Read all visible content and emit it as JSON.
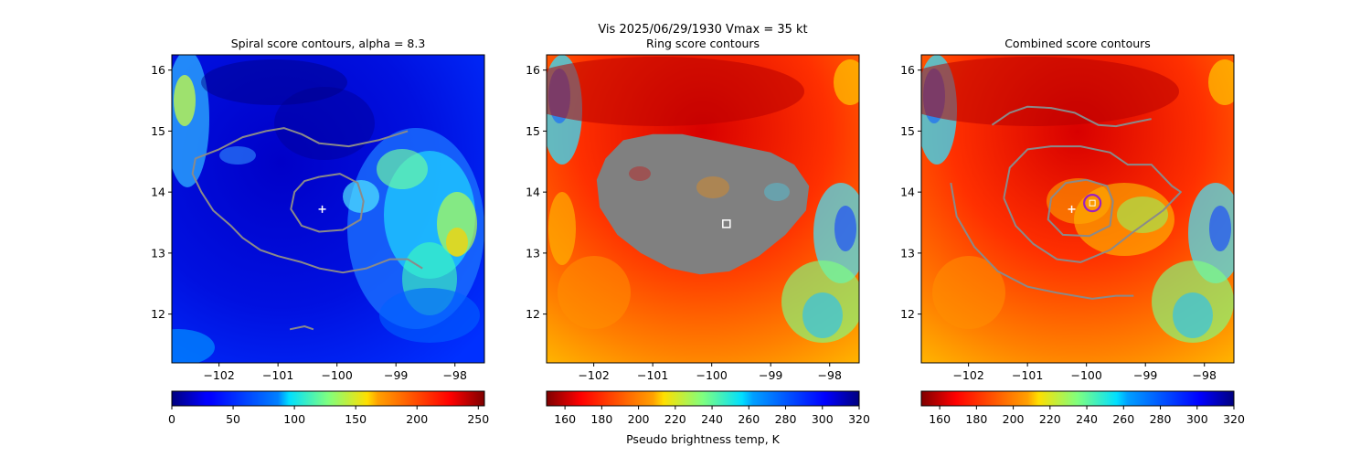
{
  "figure": {
    "suptitle_line1": "Vis  2025/06/29/1930    Vmax = 35 kt"
  },
  "colors": {
    "contour": "#8a8a8a",
    "center_marker": "#ffffff",
    "ring_fill": "#808080",
    "combined_marker": "#9b1fc2"
  },
  "chart_data": [
    {
      "type": "heatmap",
      "title": "Spiral score contours, alpha =  8.3",
      "colormap": "jet",
      "xlim": [
        -102.8,
        -97.5
      ],
      "ylim": [
        11.2,
        16.25
      ],
      "xticks": [
        -102,
        -101,
        -100,
        -99,
        -98
      ],
      "xtick_labels": [
        "−102",
        "−101",
        "−100",
        "−99",
        "−98"
      ],
      "yticks": [
        12,
        13,
        14,
        15,
        16
      ],
      "ytick_labels": [
        "12",
        "13",
        "14",
        "15",
        "16"
      ],
      "colorbar": {
        "range": [
          0,
          255
        ],
        "ticks": [
          0,
          50,
          100,
          150,
          200,
          250
        ],
        "tick_labels": [
          "0",
          "50",
          "100",
          "150",
          "200",
          "250"
        ],
        "reversed": false,
        "label": ""
      },
      "center_marker": {
        "lon": -100.25,
        "lat": 13.72
      },
      "contours": [
        [
          [
            -98.8,
            15.0
          ],
          [
            -99.3,
            14.85
          ],
          [
            -99.8,
            14.75
          ],
          [
            -100.3,
            14.8
          ],
          [
            -100.6,
            14.95
          ],
          [
            -100.9,
            15.05
          ],
          [
            -101.2,
            15.0
          ],
          [
            -101.6,
            14.9
          ],
          [
            -102.0,
            14.7
          ],
          [
            -102.4,
            14.55
          ],
          [
            -102.45,
            14.3
          ],
          [
            -102.3,
            14.0
          ],
          [
            -102.1,
            13.7
          ],
          [
            -101.8,
            13.45
          ],
          [
            -101.6,
            13.25
          ],
          [
            -101.3,
            13.05
          ],
          [
            -101.0,
            12.95
          ],
          [
            -100.6,
            12.85
          ],
          [
            -100.3,
            12.75
          ],
          [
            -99.9,
            12.68
          ],
          [
            -99.5,
            12.75
          ],
          [
            -99.1,
            12.9
          ],
          [
            -98.8,
            12.9
          ],
          [
            -98.55,
            12.75
          ]
        ],
        [
          [
            -100.3,
            14.25
          ],
          [
            -99.95,
            14.3
          ],
          [
            -99.65,
            14.15
          ],
          [
            -99.55,
            13.85
          ],
          [
            -99.6,
            13.55
          ],
          [
            -99.9,
            13.38
          ],
          [
            -100.3,
            13.35
          ],
          [
            -100.6,
            13.45
          ],
          [
            -100.78,
            13.72
          ],
          [
            -100.72,
            14.0
          ],
          [
            -100.55,
            14.18
          ],
          [
            -100.3,
            14.25
          ]
        ],
        [
          [
            -100.8,
            11.75
          ],
          [
            -100.55,
            11.8
          ],
          [
            -100.4,
            11.75
          ]
        ]
      ],
      "extra_marks": []
    },
    {
      "type": "heatmap",
      "title": "Ring score contours",
      "colormap": "jet_r",
      "xlim": [
        -102.8,
        -97.5
      ],
      "ylim": [
        11.2,
        16.25
      ],
      "xticks": [
        -102,
        -101,
        -100,
        -99,
        -98
      ],
      "xtick_labels": [
        "−102",
        "−101",
        "−100",
        "−99",
        "−98"
      ],
      "yticks": [
        12,
        13,
        14,
        15,
        16
      ],
      "ytick_labels": [
        "12",
        "13",
        "14",
        "15",
        "16"
      ],
      "colorbar": {
        "range": [
          150,
          320
        ],
        "ticks": [
          160,
          180,
          200,
          220,
          240,
          260,
          280,
          300,
          320
        ],
        "tick_labels": [
          "160",
          "180",
          "200",
          "220",
          "240",
          "260",
          "280",
          "300",
          "320"
        ],
        "reversed": true,
        "label": "Pseudo brightness temp, K"
      },
      "ring_region": [
        [
          -101.5,
          14.85
        ],
        [
          -101.0,
          14.95
        ],
        [
          -100.5,
          14.95
        ],
        [
          -100.0,
          14.85
        ],
        [
          -99.5,
          14.75
        ],
        [
          -99.0,
          14.65
        ],
        [
          -98.6,
          14.45
        ],
        [
          -98.35,
          14.1
        ],
        [
          -98.4,
          13.7
        ],
        [
          -98.75,
          13.3
        ],
        [
          -99.2,
          12.95
        ],
        [
          -99.7,
          12.7
        ],
        [
          -100.2,
          12.65
        ],
        [
          -100.7,
          12.75
        ],
        [
          -101.2,
          13.0
        ],
        [
          -101.6,
          13.3
        ],
        [
          -101.9,
          13.75
        ],
        [
          -101.95,
          14.2
        ],
        [
          -101.8,
          14.55
        ],
        [
          -101.5,
          14.85
        ]
      ],
      "box_marker": {
        "lon": -99.75,
        "lat": 13.48
      },
      "contours": [],
      "extra_marks": []
    },
    {
      "type": "heatmap",
      "title": "Combined score contours",
      "colormap": "jet_r",
      "xlim": [
        -102.8,
        -97.5
      ],
      "ylim": [
        11.2,
        16.25
      ],
      "xticks": [
        -102,
        -101,
        -100,
        -99,
        -98
      ],
      "xtick_labels": [
        "−102",
        "−101",
        "−100",
        "−99",
        "−98"
      ],
      "yticks": [
        12,
        13,
        14,
        15,
        16
      ],
      "ytick_labels": [
        "12",
        "13",
        "14",
        "15",
        "16"
      ],
      "colorbar": {
        "range": [
          150,
          320
        ],
        "ticks": [
          160,
          180,
          200,
          220,
          240,
          260,
          280,
          300,
          320
        ],
        "tick_labels": [
          "160",
          "180",
          "200",
          "220",
          "240",
          "260",
          "280",
          "300",
          "320"
        ],
        "reversed": true,
        "label": ""
      },
      "center_marker": {
        "lon": -100.25,
        "lat": 13.72
      },
      "circle_marker": {
        "lon": -99.9,
        "lat": 13.82
      },
      "contours": [
        [
          [
            -101.6,
            15.1
          ],
          [
            -101.3,
            15.3
          ],
          [
            -101.0,
            15.4
          ],
          [
            -100.6,
            15.38
          ],
          [
            -100.2,
            15.3
          ],
          [
            -99.8,
            15.1
          ],
          [
            -99.5,
            15.08
          ],
          [
            -99.15,
            15.15
          ],
          [
            -98.9,
            15.2
          ]
        ],
        [
          [
            -101.4,
            13.9
          ],
          [
            -101.3,
            14.4
          ],
          [
            -101.0,
            14.7
          ],
          [
            -100.6,
            14.75
          ],
          [
            -100.1,
            14.75
          ],
          [
            -99.6,
            14.65
          ],
          [
            -99.3,
            14.45
          ],
          [
            -98.9,
            14.45
          ],
          [
            -98.55,
            14.1
          ],
          [
            -98.4,
            14.0
          ],
          [
            -98.7,
            13.7
          ],
          [
            -99.2,
            13.35
          ],
          [
            -99.6,
            13.05
          ],
          [
            -100.1,
            12.85
          ],
          [
            -100.5,
            12.9
          ],
          [
            -100.9,
            13.15
          ],
          [
            -101.2,
            13.45
          ],
          [
            -101.4,
            13.9
          ]
        ],
        [
          [
            -100.0,
            14.2
          ],
          [
            -99.65,
            14.1
          ],
          [
            -99.55,
            13.85
          ],
          [
            -99.6,
            13.45
          ],
          [
            -99.95,
            13.28
          ],
          [
            -100.4,
            13.3
          ],
          [
            -100.65,
            13.55
          ],
          [
            -100.6,
            13.9
          ],
          [
            -100.35,
            14.15
          ],
          [
            -100.0,
            14.2
          ]
        ],
        [
          [
            -102.3,
            14.15
          ],
          [
            -102.2,
            13.6
          ],
          [
            -101.9,
            13.1
          ],
          [
            -101.5,
            12.7
          ],
          [
            -101.0,
            12.45
          ],
          [
            -100.5,
            12.35
          ],
          [
            -99.9,
            12.25
          ],
          [
            -99.5,
            12.3
          ],
          [
            -99.2,
            12.3
          ]
        ]
      ],
      "extra_marks": []
    }
  ]
}
